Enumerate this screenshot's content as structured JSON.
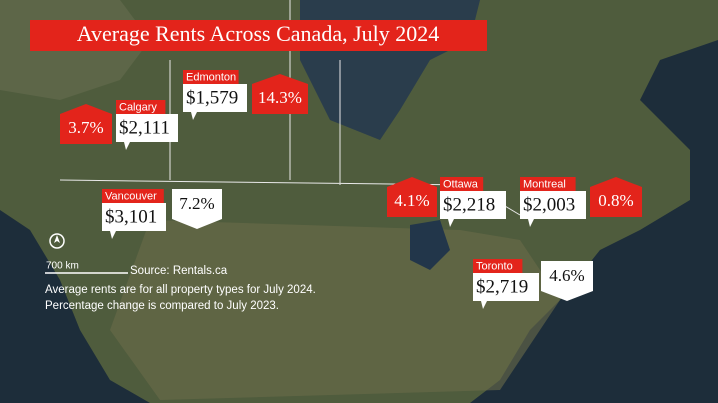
{
  "title": "Average Rents Across Canada, July 2024",
  "cities": [
    {
      "name": "Edmonton",
      "rent": "$1,579",
      "change": "14.3%",
      "trend": "up"
    },
    {
      "name": "Calgary",
      "rent": "$2,111",
      "change": "3.7%",
      "trend": "up"
    },
    {
      "name": "Vancouver",
      "rent": "$3,101",
      "change": "7.2%",
      "trend": "down"
    },
    {
      "name": "Ottawa",
      "rent": "$2,218",
      "change": "4.1%",
      "trend": "up"
    },
    {
      "name": "Montreal",
      "rent": "$2,003",
      "change": "0.8%",
      "trend": "up"
    },
    {
      "name": "Toronto",
      "rent": "$2,719",
      "change": "4.6%",
      "trend": "down"
    }
  ],
  "legend": {
    "scale": "700 km",
    "source": "Source: Rentals.ca",
    "notes": [
      "Average rents are for all property types for July 2024.",
      "Percentage change is compared to July 2023."
    ]
  }
}
